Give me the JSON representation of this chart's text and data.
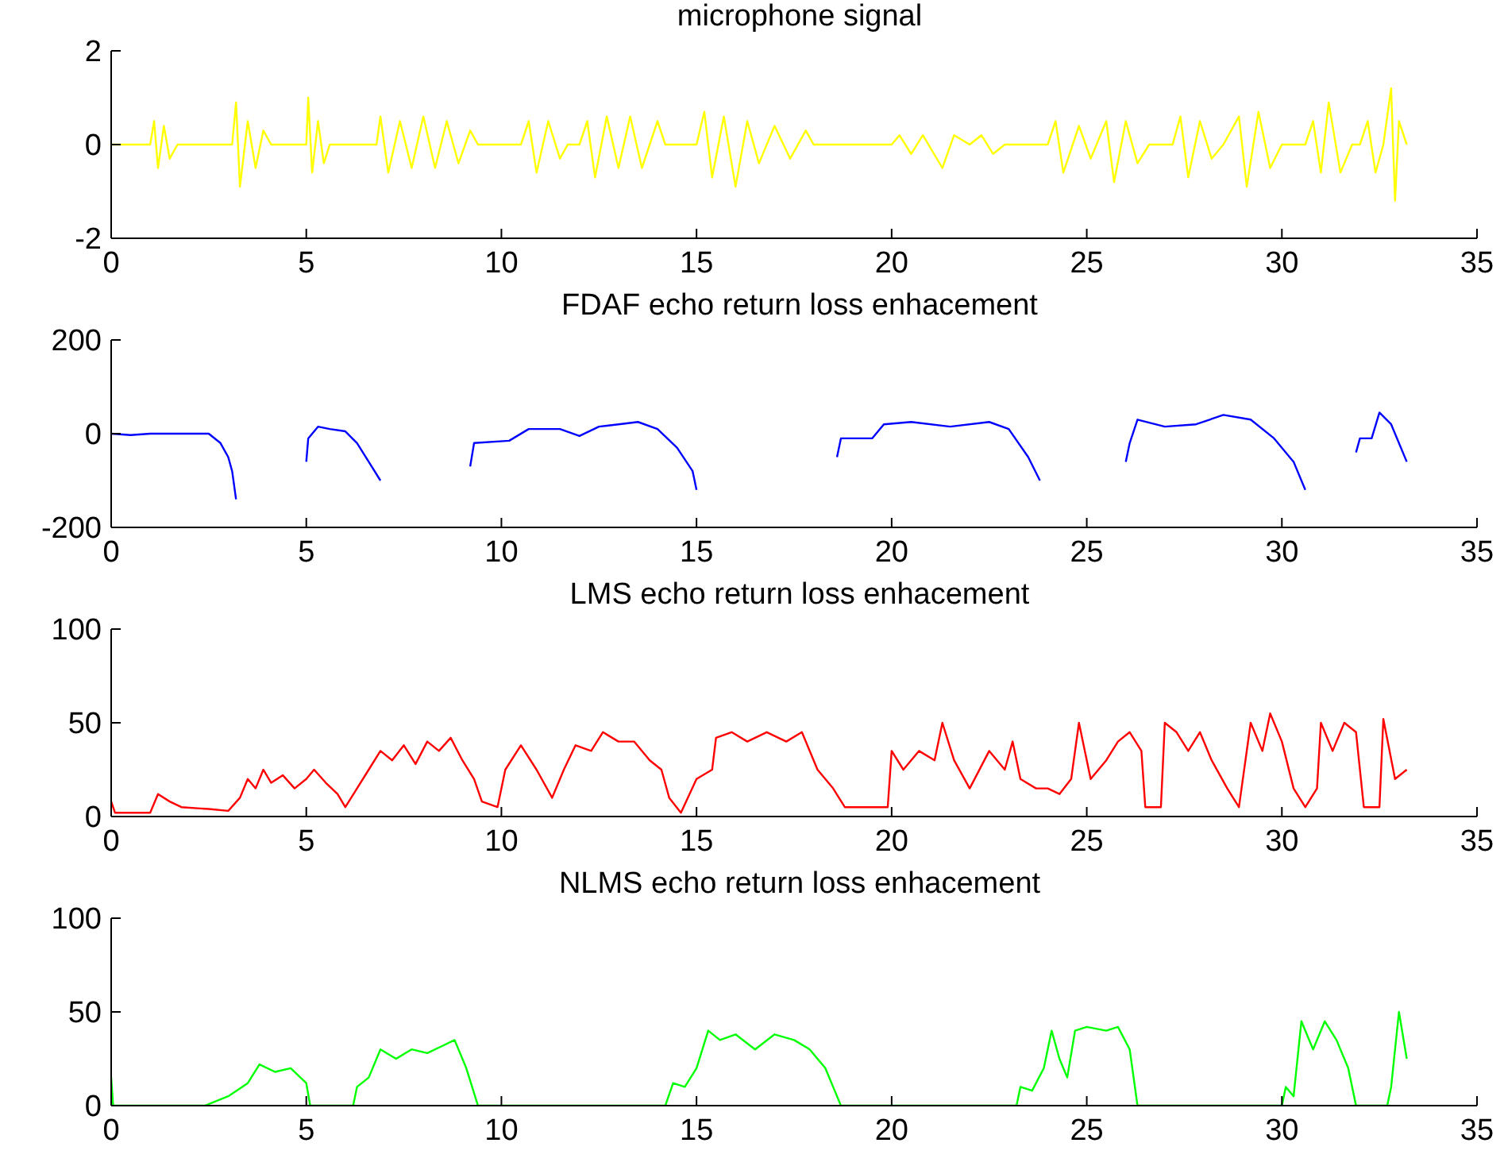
{
  "chart_data": [
    {
      "type": "line",
      "title": "microphone signal",
      "color": "#ffff00",
      "xlim": [
        0,
        35
      ],
      "xticks": [
        0,
        5,
        10,
        15,
        20,
        25,
        30,
        35
      ],
      "ylim": [
        -2,
        2
      ],
      "yticks": [
        -2,
        0,
        2
      ],
      "x": [
        0,
        1.0,
        1.1,
        1.2,
        1.35,
        1.5,
        1.7,
        3.1,
        3.2,
        3.3,
        3.5,
        3.7,
        3.9,
        4.1,
        5.0,
        5.05,
        5.15,
        5.3,
        5.45,
        5.6,
        6.8,
        6.9,
        7.1,
        7.4,
        7.7,
        8.0,
        8.3,
        8.6,
        8.9,
        9.2,
        9.4,
        10.5,
        10.7,
        10.9,
        11.2,
        11.5,
        11.7,
        12.0,
        12.2,
        12.4,
        12.7,
        13.0,
        13.3,
        13.6,
        14.0,
        14.2,
        15.0,
        15.2,
        15.4,
        15.7,
        16.0,
        16.3,
        16.6,
        17.0,
        17.4,
        17.8,
        18.0,
        20.0,
        20.2,
        20.5,
        20.8,
        21.3,
        21.6,
        22.0,
        22.3,
        22.6,
        22.9,
        24.0,
        24.2,
        24.4,
        24.8,
        25.1,
        25.5,
        25.7,
        26.0,
        26.3,
        26.6,
        27.2,
        27.4,
        27.6,
        27.9,
        28.2,
        28.5,
        28.9,
        29.1,
        29.4,
        29.7,
        30.0,
        30.6,
        30.8,
        31.0,
        31.2,
        31.5,
        31.8,
        32.0,
        32.2,
        32.4,
        32.6,
        32.8,
        32.9,
        33.0,
        33.2
      ],
      "values": [
        0,
        0,
        0.5,
        -0.5,
        0.4,
        -0.3,
        0,
        0,
        0.9,
        -0.9,
        0.5,
        -0.5,
        0.3,
        0,
        0,
        1.0,
        -0.6,
        0.5,
        -0.4,
        0,
        0,
        0.6,
        -0.6,
        0.5,
        -0.5,
        0.6,
        -0.5,
        0.5,
        -0.4,
        0.3,
        0,
        0,
        0.5,
        -0.6,
        0.5,
        -0.3,
        0,
        0,
        0.5,
        -0.7,
        0.6,
        -0.5,
        0.6,
        -0.5,
        0.5,
        0,
        0,
        0.7,
        -0.7,
        0.6,
        -0.9,
        0.5,
        -0.4,
        0.4,
        -0.3,
        0.3,
        0,
        0,
        0.2,
        -0.2,
        0.2,
        -0.5,
        0.2,
        0,
        0.2,
        -0.2,
        0,
        0,
        0.5,
        -0.6,
        0.4,
        -0.3,
        0.5,
        -0.8,
        0.5,
        -0.4,
        0,
        0,
        0.6,
        -0.7,
        0.5,
        -0.3,
        0,
        0.6,
        -0.9,
        0.7,
        -0.5,
        0,
        0,
        0.5,
        -0.6,
        0.9,
        -0.6,
        0,
        0,
        0.5,
        -0.6,
        0,
        1.2,
        -1.2,
        0.5,
        0
      ]
    },
    {
      "type": "line",
      "title": "FDAF echo return loss enhacement",
      "color": "#0000ff",
      "xlim": [
        0,
        35
      ],
      "xticks": [
        0,
        5,
        10,
        15,
        20,
        25,
        30,
        35
      ],
      "ylim": [
        -200,
        200
      ],
      "yticks": [
        -200,
        0,
        200
      ],
      "x": [
        0,
        0.5,
        1,
        2,
        2.5,
        2.8,
        3.0,
        3.1,
        3.2,
        3.5,
        5.0,
        5.05,
        5.3,
        5.6,
        6.0,
        6.3,
        6.6,
        6.9,
        7.5,
        9.2,
        9.3,
        10.2,
        10.7,
        11.5,
        12,
        12.5,
        13,
        13.5,
        14,
        14.5,
        14.9,
        15.0,
        16,
        18.6,
        18.7,
        19.5,
        19.8,
        20.5,
        21.5,
        22.5,
        23,
        23.5,
        23.8,
        24.5,
        26.0,
        26.1,
        26.3,
        27,
        27.8,
        28.5,
        29.2,
        29.8,
        30.3,
        30.6,
        31,
        31.9,
        32.0,
        32.3,
        32.5,
        32.8,
        33.2
      ],
      "values": [
        0,
        -3,
        0,
        0,
        0,
        -20,
        -50,
        -80,
        -140,
        null,
        -60,
        -10,
        15,
        10,
        5,
        -20,
        -60,
        -100,
        null,
        -70,
        -20,
        -15,
        10,
        10,
        -5,
        15,
        20,
        25,
        10,
        -30,
        -80,
        -120,
        null,
        -50,
        -10,
        -10,
        20,
        25,
        15,
        25,
        10,
        -50,
        -100,
        null,
        -60,
        -20,
        30,
        15,
        20,
        40,
        30,
        -10,
        -60,
        -120,
        null,
        -40,
        -10,
        -10,
        45,
        20,
        -60
      ]
    },
    {
      "type": "line",
      "title": "LMS echo return loss enhacement",
      "color": "#ff0000",
      "xlim": [
        0,
        35
      ],
      "xticks": [
        0,
        5,
        10,
        15,
        20,
        25,
        30,
        35
      ],
      "ylim": [
        0,
        100
      ],
      "yticks": [
        0,
        50,
        100
      ],
      "x": [
        0,
        0.1,
        1.0,
        1.2,
        1.5,
        1.8,
        2.5,
        3.0,
        3.3,
        3.5,
        3.7,
        3.9,
        4.1,
        4.4,
        4.7,
        5.0,
        5.2,
        5.5,
        5.8,
        6.0,
        6.3,
        6.6,
        6.9,
        7.2,
        7.5,
        7.8,
        8.1,
        8.4,
        8.7,
        9.0,
        9.3,
        9.5,
        9.9,
        10.1,
        10.5,
        10.9,
        11.3,
        11.6,
        11.9,
        12.3,
        12.6,
        13.0,
        13.4,
        13.8,
        14.1,
        14.3,
        14.6,
        15.0,
        15.4,
        15.5,
        15.9,
        16.3,
        16.8,
        17.3,
        17.7,
        18.1,
        18.5,
        18.8,
        19.5,
        19.9,
        20.0,
        20.3,
        20.7,
        21.1,
        21.3,
        21.6,
        22.0,
        22.5,
        22.9,
        23.1,
        23.3,
        23.7,
        24.0,
        24.3,
        24.6,
        24.8,
        25.1,
        25.5,
        25.8,
        26.1,
        26.4,
        26.5,
        26.9,
        27.0,
        27.3,
        27.6,
        27.9,
        28.2,
        28.6,
        28.9,
        29.2,
        29.5,
        29.7,
        30.0,
        30.3,
        30.6,
        30.9,
        31.0,
        31.3,
        31.6,
        31.9,
        32.1,
        32.5,
        32.6,
        32.9,
        33.2
      ],
      "values": [
        8,
        2,
        2,
        12,
        8,
        5,
        4,
        3,
        10,
        20,
        15,
        25,
        18,
        22,
        15,
        20,
        25,
        18,
        12,
        5,
        15,
        25,
        35,
        30,
        38,
        28,
        40,
        35,
        42,
        30,
        20,
        8,
        5,
        25,
        38,
        25,
        10,
        25,
        38,
        35,
        45,
        40,
        40,
        30,
        25,
        10,
        2,
        20,
        25,
        42,
        45,
        40,
        45,
        40,
        45,
        25,
        15,
        5,
        5,
        5,
        35,
        25,
        35,
        30,
        50,
        30,
        15,
        35,
        25,
        40,
        20,
        15,
        15,
        12,
        20,
        50,
        20,
        30,
        40,
        45,
        35,
        5,
        5,
        50,
        45,
        35,
        45,
        30,
        15,
        5,
        50,
        35,
        55,
        40,
        15,
        5,
        15,
        50,
        35,
        50,
        45,
        5,
        5,
        52,
        20,
        25
      ]
    },
    {
      "type": "line",
      "title": "NLMS echo return loss enhacement",
      "color": "#00ff00",
      "xlim": [
        0,
        35
      ],
      "xticks": [
        0,
        5,
        10,
        15,
        20,
        25,
        30,
        35
      ],
      "ylim": [
        0,
        100
      ],
      "yticks": [
        0,
        50,
        100
      ],
      "x": [
        0,
        0.05,
        2.4,
        3.0,
        3.5,
        3.8,
        4.2,
        4.6,
        5.0,
        5.1,
        6.2,
        6.3,
        6.6,
        6.9,
        7.3,
        7.7,
        8.1,
        8.5,
        8.8,
        9.1,
        9.4,
        14.2,
        14.4,
        14.7,
        15.0,
        15.3,
        15.6,
        16.0,
        16.5,
        17.0,
        17.5,
        17.9,
        18.3,
        18.5,
        18.7,
        23.2,
        23.3,
        23.6,
        23.9,
        24.1,
        24.3,
        24.5,
        24.7,
        25.0,
        25.5,
        25.8,
        26.1,
        26.3,
        30.0,
        30.1,
        30.3,
        30.5,
        30.8,
        31.1,
        31.4,
        31.7,
        31.9,
        32.7,
        32.8,
        33.0,
        33.2
      ],
      "values": [
        15,
        0,
        0,
        5,
        12,
        22,
        18,
        20,
        12,
        0,
        0,
        10,
        15,
        30,
        25,
        30,
        28,
        32,
        35,
        20,
        0,
        0,
        12,
        10,
        20,
        40,
        35,
        38,
        30,
        38,
        35,
        30,
        20,
        10,
        0,
        0,
        10,
        8,
        20,
        40,
        25,
        15,
        40,
        42,
        40,
        42,
        30,
        0,
        0,
        10,
        5,
        45,
        30,
        45,
        35,
        20,
        0,
        0,
        10,
        50,
        25
      ]
    }
  ]
}
